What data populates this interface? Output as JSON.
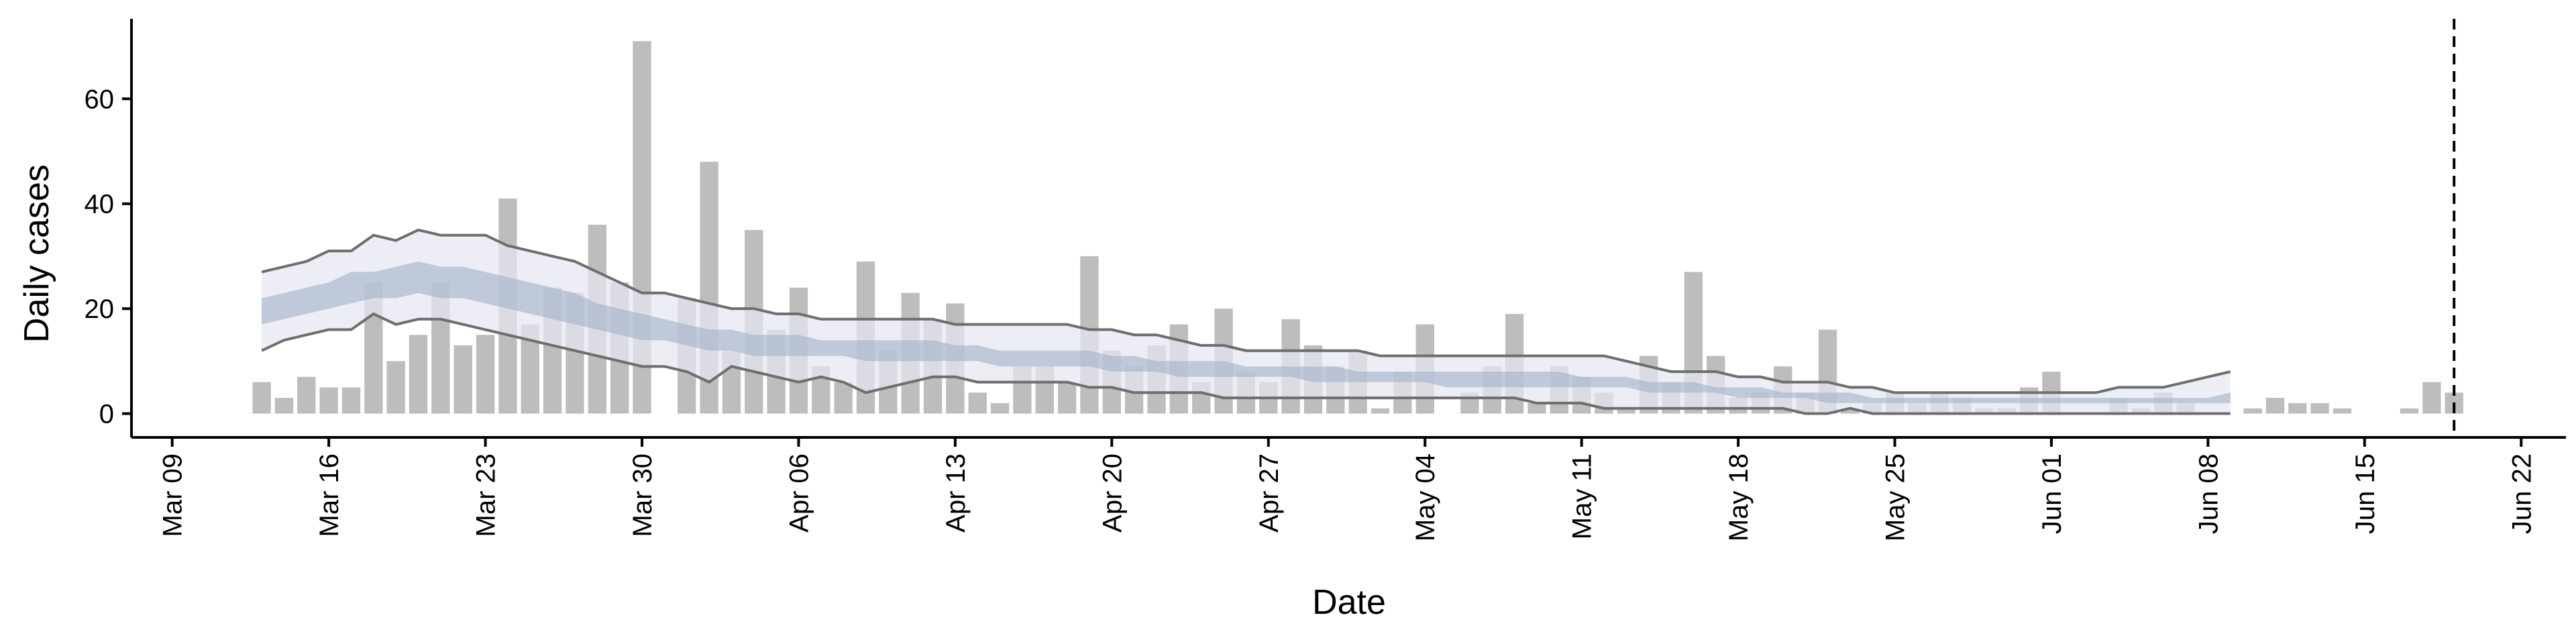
{
  "chart_data": {
    "type": "bar",
    "title": "",
    "xlabel": "Date",
    "ylabel": "Daily cases",
    "x_ticks": [
      "Mar 09",
      "Mar 16",
      "Mar 23",
      "Mar 30",
      "Apr 06",
      "Apr 13",
      "Apr 20",
      "Apr 27",
      "May 04",
      "May 11",
      "May 18",
      "May 25",
      "Jun 01",
      "Jun 08",
      "Jun 15",
      "Jun 22"
    ],
    "y_ticks": [
      "0",
      "20",
      "40",
      "60"
    ],
    "xlim": [
      "2020-03-07",
      "2020-06-24"
    ],
    "ylim": [
      -3,
      75
    ],
    "grid": false,
    "legend": "none",
    "vline_date": "2020-06-19",
    "colors": {
      "bars": "#bdbdbd",
      "inner_band": "#a4b1ca",
      "outer_band": "#e6e8f1",
      "bound_lines": "#6e6e6e",
      "axis": "#000000"
    },
    "bars": {
      "start_date": "2020-03-13",
      "values": [
        6,
        3,
        7,
        5,
        5,
        25,
        10,
        15,
        25,
        13,
        15,
        41,
        17,
        24,
        23,
        36,
        25,
        71,
        0,
        22,
        48,
        12,
        35,
        16,
        24,
        9,
        6,
        29,
        12,
        23,
        18,
        21,
        4,
        2,
        9,
        9,
        6,
        30,
        12,
        9,
        13,
        17,
        6,
        20,
        8,
        6,
        18,
        13,
        9,
        12,
        1,
        8,
        17,
        0,
        4,
        9,
        19,
        2,
        9,
        7,
        4,
        1,
        11,
        6,
        27,
        11,
        3,
        4,
        9,
        4,
        16,
        1,
        2,
        4,
        2,
        4,
        3,
        1,
        1,
        5,
        8,
        0,
        0,
        3,
        1,
        4,
        2,
        0,
        0,
        1,
        3,
        2,
        2,
        1,
        0,
        0,
        1,
        6,
        4
      ]
    },
    "band": {
      "start_date": "2020-03-13",
      "end_date": "2020-06-08",
      "outer_upper": [
        27,
        28,
        29,
        31,
        31,
        34,
        33,
        35,
        34,
        34,
        34,
        32,
        31,
        30,
        29,
        27,
        25,
        23,
        23,
        22,
        21,
        20,
        20,
        19,
        19,
        18,
        18,
        18,
        18,
        18,
        18,
        17,
        17,
        17,
        17,
        17,
        17,
        16,
        16,
        15,
        15,
        14,
        13,
        13,
        12,
        12,
        12,
        12,
        12,
        12,
        11,
        11,
        11,
        11,
        11,
        11,
        11,
        11,
        11,
        11,
        11,
        10,
        9,
        8,
        8,
        8,
        7,
        7,
        6,
        6,
        6,
        5,
        5,
        4,
        4,
        4,
        4,
        4,
        4,
        4,
        4,
        4,
        4,
        5,
        5,
        5,
        6,
        7,
        8
      ],
      "inner_upper": [
        22,
        23,
        24,
        25,
        27,
        27,
        28,
        29,
        28,
        28,
        27,
        26,
        25,
        24,
        23,
        21,
        20,
        19,
        18,
        17,
        16,
        16,
        15,
        15,
        15,
        14,
        14,
        14,
        14,
        14,
        14,
        13,
        13,
        12,
        12,
        12,
        12,
        12,
        11,
        11,
        10,
        10,
        10,
        10,
        9,
        9,
        9,
        9,
        9,
        8,
        8,
        8,
        8,
        8,
        8,
        8,
        8,
        8,
        8,
        7,
        7,
        7,
        6,
        6,
        6,
        5,
        5,
        5,
        4,
        4,
        4,
        4,
        3,
        3,
        3,
        3,
        3,
        3,
        3,
        3,
        3,
        3,
        3,
        3,
        3,
        3,
        3,
        3,
        4
      ],
      "inner_lower": [
        17,
        18,
        19,
        20,
        21,
        22,
        22,
        23,
        22,
        22,
        21,
        20,
        19,
        18,
        17,
        16,
        15,
        14,
        14,
        13,
        12,
        12,
        11,
        11,
        11,
        11,
        11,
        10,
        10,
        10,
        10,
        10,
        10,
        9,
        9,
        9,
        9,
        9,
        8,
        8,
        8,
        7,
        7,
        7,
        7,
        7,
        7,
        6,
        6,
        6,
        6,
        6,
        6,
        5,
        5,
        5,
        5,
        5,
        5,
        5,
        5,
        5,
        4,
        4,
        4,
        4,
        3,
        3,
        3,
        3,
        2,
        2,
        2,
        2,
        2,
        2,
        2,
        2,
        2,
        2,
        2,
        2,
        2,
        2,
        2,
        2,
        2,
        2,
        2
      ],
      "outer_lower": [
        12,
        14,
        15,
        16,
        16,
        19,
        17,
        18,
        18,
        17,
        16,
        15,
        14,
        13,
        12,
        11,
        10,
        9,
        9,
        8,
        6,
        9,
        8,
        7,
        6,
        7,
        6,
        4,
        5,
        6,
        7,
        7,
        6,
        6,
        6,
        6,
        6,
        5,
        5,
        4,
        4,
        4,
        4,
        3,
        3,
        3,
        3,
        3,
        3,
        3,
        3,
        3,
        3,
        3,
        3,
        3,
        3,
        2,
        2,
        2,
        1,
        1,
        1,
        1,
        1,
        1,
        1,
        1,
        1,
        0,
        0,
        1,
        0,
        0,
        0,
        0,
        0,
        0,
        0,
        0,
        0,
        0,
        0,
        0,
        0,
        0,
        0,
        0,
        0
      ]
    }
  }
}
